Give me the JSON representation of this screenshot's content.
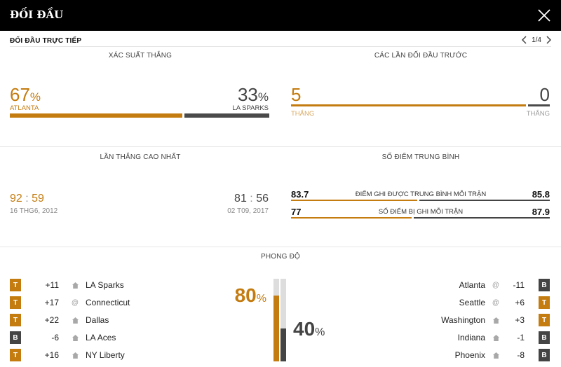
{
  "header": {
    "title": "ĐỐI ĐẦU"
  },
  "subheader": {
    "title": "ĐỐI ĐẦU TRỰC TIẾP",
    "page": "1/4"
  },
  "win_prob": {
    "title": "XÁC SUẤT THẮNG",
    "home": {
      "value": "67",
      "pct": "%",
      "name": "ATLANTA",
      "fraction": 0.67
    },
    "away": {
      "value": "33",
      "pct": "%",
      "name": "LA SPARKS",
      "fraction": 0.33
    }
  },
  "h2h": {
    "title": "CÁC LẦN ĐỐI ĐẦU TRƯỚC",
    "home": {
      "value": "5",
      "label": "THẮNG"
    },
    "away": {
      "value": "0",
      "label": "THẮNG"
    }
  },
  "biggest_win": {
    "title": "LẦN THẮNG CAO NHẤT",
    "home": {
      "a": "92",
      "sep": ":",
      "b": "59",
      "date": "16 THG6, 2012"
    },
    "away": {
      "a": "81",
      "sep": ":",
      "b": "56",
      "date": "02 T09, 2017"
    }
  },
  "avg_points": {
    "title": "SỐ ĐIỂM TRUNG BÌNH",
    "rows": [
      {
        "home": "83.7",
        "label": "ĐIỂM GHI ĐƯỢC TRUNG BÌNH MỖI TRẬN",
        "away": "85.8"
      },
      {
        "home": "77",
        "label": "SỐ ĐIỂM BỊ GHI MỖI TRẬN",
        "away": "87.9"
      }
    ]
  },
  "form": {
    "title": "PHONG ĐỘ",
    "home_pct": "80",
    "away_pct": "40",
    "pct_sign": "%",
    "home_fraction": 0.8,
    "away_fraction": 0.4,
    "home": [
      {
        "result": "T",
        "diff": "+11",
        "venue": "home",
        "opponent": "LA Sparks"
      },
      {
        "result": "T",
        "diff": "+17",
        "venue": "away",
        "opponent": "Connecticut"
      },
      {
        "result": "T",
        "diff": "+22",
        "venue": "home",
        "opponent": "Dallas"
      },
      {
        "result": "B",
        "diff": "-6",
        "venue": "home",
        "opponent": "LA Aces"
      },
      {
        "result": "T",
        "diff": "+16",
        "venue": "home",
        "opponent": "NY Liberty"
      }
    ],
    "away": [
      {
        "result": "B",
        "diff": "-11",
        "venue": "away",
        "opponent": "Atlanta"
      },
      {
        "result": "T",
        "diff": "+6",
        "venue": "away",
        "opponent": "Seattle"
      },
      {
        "result": "T",
        "diff": "+3",
        "venue": "home",
        "opponent": "Washington"
      },
      {
        "result": "B",
        "diff": "-1",
        "venue": "home",
        "opponent": "Indiana"
      },
      {
        "result": "B",
        "diff": "-8",
        "venue": "home",
        "opponent": "Phoenix"
      }
    ],
    "at_symbol": "@"
  },
  "colors": {
    "orange": "#c47c10",
    "dark": "#444444"
  }
}
